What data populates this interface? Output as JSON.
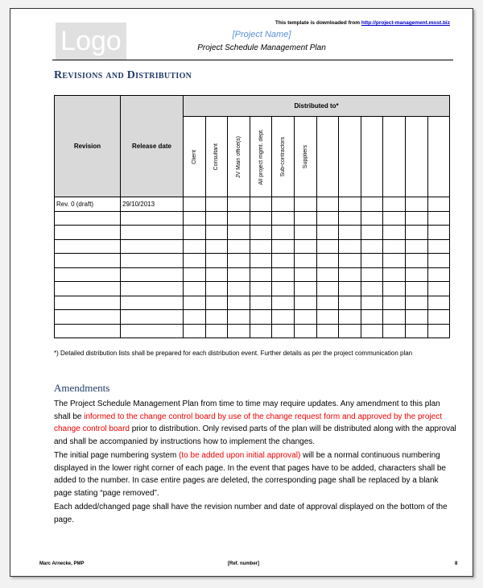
{
  "header": {
    "logo": "Logo",
    "download_text": "This template is downloaded from",
    "download_link": "http://project-management.most.biz",
    "project_name": "[Project Name]",
    "doc_title": "Project Schedule Management Plan"
  },
  "section_title": "Revisions and Distribution",
  "table": {
    "col_revision": "Revision",
    "col_release": "Release date",
    "distributed_to": "Distributed to*",
    "recipients": [
      "Client",
      "Consultant",
      "JV Main office(s)",
      "All project mgmt. dept.",
      "Sub-contractors",
      "Suppliers",
      "",
      "",
      "",
      "",
      "",
      ""
    ],
    "rows": [
      [
        "Rev. 0 (draft)",
        "29/10/2013"
      ],
      [
        "",
        ""
      ],
      [
        "",
        ""
      ],
      [
        "",
        ""
      ],
      [
        "",
        ""
      ],
      [
        "",
        ""
      ],
      [
        "",
        ""
      ],
      [
        "",
        ""
      ],
      [
        "",
        ""
      ],
      [
        "",
        ""
      ]
    ]
  },
  "note": "*) Detailed distribution lists shall be prepared for each distribution event. Further details as per the project communication plan",
  "amendments": {
    "title": "Amendments",
    "p1a": "The Project Schedule Management Plan from time to time may require updates. Any amendment to this plan shall be ",
    "p1red": "informed to the change control board by use of the change request form and approved by the project change control board",
    "p1b": " prior to distribution. Only revised parts of the plan will be distributed along with the approval and shall be accompanied by instructions how to implement the changes.",
    "p2a": "The initial page numbering system ",
    "p2red": "(to be added upon initial approval)",
    "p2b": " will be a normal continuous numbering displayed in the lower right corner of each page. In the event that pages have to be added, characters shall be added to the number. In case entire pages are deleted, the corresponding page shall be replaced by a blank page stating “page removed”.",
    "p3": "Each added/changed page shall have the revision number and date of approval displayed on the bottom of the page."
  },
  "footer": {
    "author": "Marc Arnecke, PMP",
    "ref": "[Ref. number]",
    "page": "8"
  }
}
